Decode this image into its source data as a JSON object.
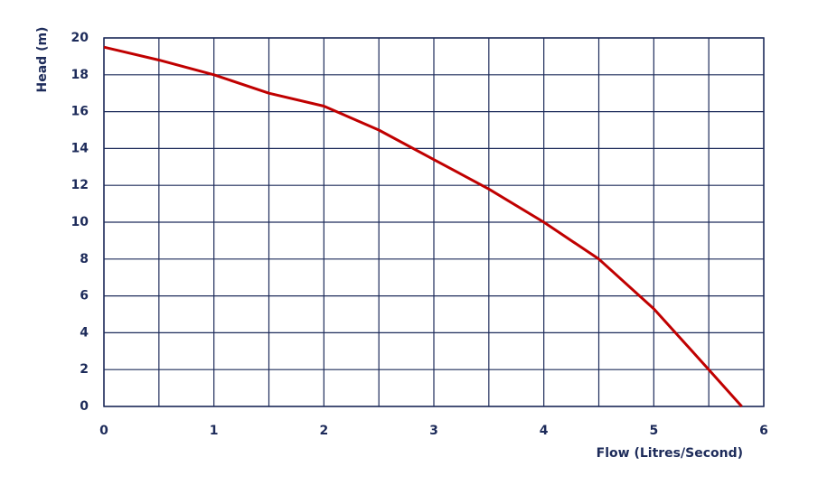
{
  "chart_data": {
    "type": "line",
    "xlabel": "Flow (Litres/Second)",
    "ylabel": "Head (m)",
    "x": [
      0,
      0.5,
      1,
      1.5,
      2,
      2.5,
      3,
      3.5,
      4,
      4.5,
      5,
      5.5,
      5.8
    ],
    "series": [
      {
        "color": "#c00000",
        "values": [
          19.5,
          18.8,
          18,
          17,
          16.3,
          15,
          13.4,
          11.8,
          10,
          8,
          5.3,
          2,
          0
        ]
      }
    ],
    "xlim": [
      0,
      6
    ],
    "xticks": [
      0,
      1,
      2,
      3,
      4,
      5,
      6
    ],
    "xminor": [
      0.5,
      1.5,
      2.5,
      3.5,
      4.5,
      5.5
    ],
    "ylim": [
      0,
      20
    ],
    "yticks": [
      0,
      2,
      4,
      6,
      8,
      10,
      12,
      14,
      16,
      18,
      20
    ],
    "grid": true,
    "grid_color": "#1d2b5a"
  }
}
